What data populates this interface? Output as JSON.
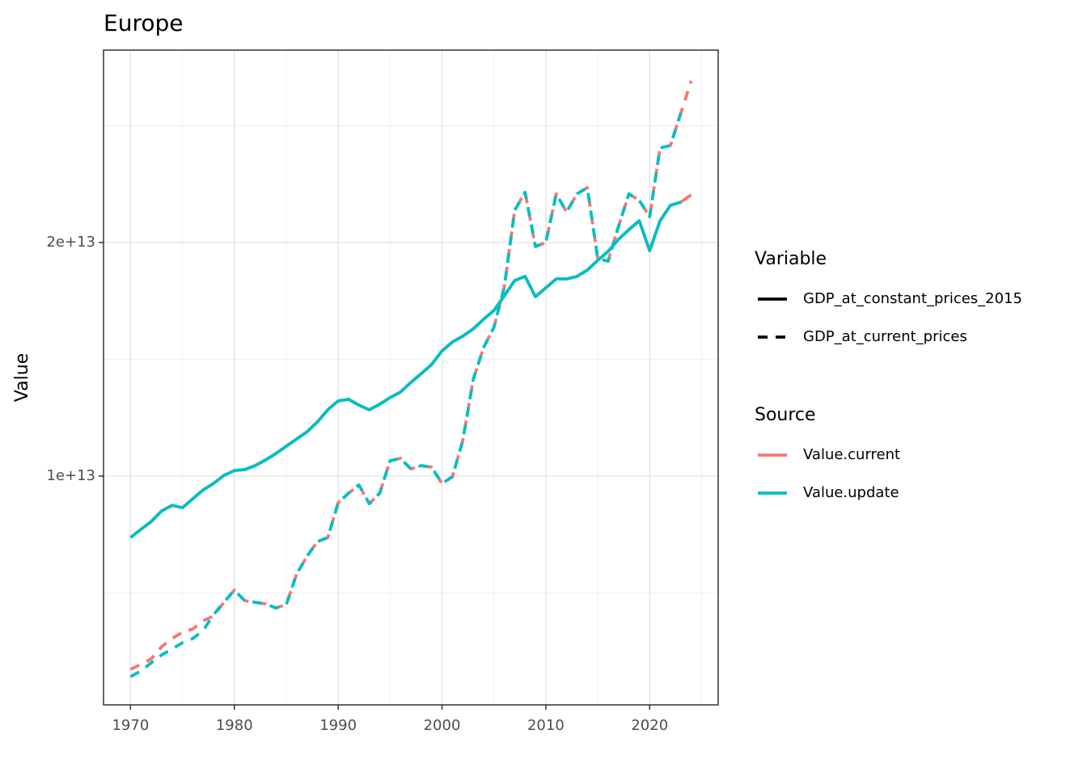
{
  "chart_data": {
    "type": "line",
    "title": "Europe",
    "y_label": "Value",
    "x": [
      1970,
      1971,
      1972,
      1973,
      1974,
      1975,
      1976,
      1977,
      1978,
      1979,
      1980,
      1981,
      1982,
      1983,
      1984,
      1985,
      1986,
      1987,
      1988,
      1989,
      1990,
      1991,
      1992,
      1993,
      1994,
      1995,
      1996,
      1997,
      1998,
      1999,
      2000,
      2001,
      2002,
      2003,
      2004,
      2005,
      2006,
      2007,
      2008,
      2009,
      2010,
      2011,
      2012,
      2013,
      2014,
      2015,
      2016,
      2017,
      2018,
      2019,
      2020,
      2021,
      2022,
      2023,
      2024
    ],
    "xlim": [
      1967.4,
      2026.6
    ],
    "xticks": [
      1970,
      1980,
      1990,
      2000,
      2010,
      2020
    ],
    "minor_xticks": [
      1975,
      1985,
      1995,
      2005,
      2015,
      2025
    ],
    "ylim": [
      210000000000.0,
      28235000000000.0
    ],
    "yticks": [
      {
        "value": 10000000000000.0,
        "label": "1e+13"
      },
      {
        "value": 20000000000000.0,
        "label": "2e+13"
      }
    ],
    "minor_yticks": [
      5000000000000.0,
      15000000000000.0,
      25000000000000.0
    ],
    "grid": true,
    "series": [
      {
        "variable": "GDP_at_constant_prices_2015",
        "source": "Value.current",
        "linetype": "solid",
        "color": "#F8766D",
        "values": [
          7370000000000.0,
          7720000000000.0,
          8060000000000.0,
          8510000000000.0,
          8750000000000.0,
          8650000000000.0,
          9030000000000.0,
          9410000000000.0,
          9690000000000.0,
          10030000000000.0,
          10240000000000.0,
          10280000000000.0,
          10450000000000.0,
          10690000000000.0,
          10970000000000.0,
          11280000000000.0,
          11590000000000.0,
          11900000000000.0,
          12320000000000.0,
          12840000000000.0,
          13220000000000.0,
          13290000000000.0,
          13040000000000.0,
          12840000000000.0,
          13080000000000.0,
          13360000000000.0,
          13600000000000.0,
          14010000000000.0,
          14390000000000.0,
          14780000000000.0,
          15360000000000.0,
          15740000000000.0,
          15990000000000.0,
          16300000000000.0,
          16710000000000.0,
          17090000000000.0,
          17720000000000.0,
          18370000000000.0,
          18550000000000.0,
          17680000000000.0,
          18060000000000.0,
          18440000000000.0,
          18440000000000.0,
          18550000000000.0,
          18820000000000.0,
          19240000000000.0,
          19620000000000.0,
          20140000000000.0,
          20550000000000.0,
          20930000000000.0,
          19650000000000.0,
          20930000000000.0,
          21590000000000.0,
          21730000000000.0,
          22040000000000.0
        ]
      },
      {
        "variable": "GDP_at_current_prices",
        "source": "Value.current",
        "linetype": "dashed",
        "color": "#F8766D",
        "values": [
          1730000000000.0,
          1940000000000.0,
          2180000000000.0,
          2700000000000.0,
          3050000000000.0,
          3320000000000.0,
          3460000000000.0,
          3810000000000.0,
          4010000000000.0,
          4600000000000.0,
          5120000000000.0,
          4670000000000.0,
          4600000000000.0,
          4530000000000.0,
          4360000000000.0,
          4500000000000.0,
          5810000000000.0,
          6570000000000.0,
          7200000000000.0,
          7370000000000.0,
          8860000000000.0,
          9270000000000.0,
          9620000000000.0,
          8820000000000.0,
          9270000000000.0,
          10660000000000.0,
          10760000000000.0,
          10310000000000.0,
          10450000000000.0,
          10380000000000.0,
          9690000000000.0,
          9970000000000.0,
          11520000000000.0,
          14120000000000.0,
          15500000000000.0,
          16370000000000.0,
          18100000000000.0,
          21380000000000.0,
          22150000000000.0,
          19830000000000.0,
          20000000000000.0,
          22080000000000.0,
          21310000000000.0,
          22080000000000.0,
          22350000000000.0,
          19310000000000.0,
          19200000000000.0,
          20690000000000.0,
          22080000000000.0,
          21800000000000.0,
          21110000000000.0,
          24050000000000.0,
          24150000000000.0,
          25540000000000.0,
          26920000000000.0
        ]
      },
      {
        "variable": "GDP_at_constant_prices_2015",
        "source": "Value.update",
        "linetype": "solid",
        "color": "#00BFC4",
        "values": [
          7370000000000.0,
          7720000000000.0,
          8060000000000.0,
          8510000000000.0,
          8750000000000.0,
          8650000000000.0,
          9030000000000.0,
          9410000000000.0,
          9690000000000.0,
          10030000000000.0,
          10240000000000.0,
          10280000000000.0,
          10450000000000.0,
          10690000000000.0,
          10970000000000.0,
          11280000000000.0,
          11590000000000.0,
          11900000000000.0,
          12320000000000.0,
          12840000000000.0,
          13220000000000.0,
          13290000000000.0,
          13040000000000.0,
          12840000000000.0,
          13080000000000.0,
          13360000000000.0,
          13600000000000.0,
          14010000000000.0,
          14390000000000.0,
          14780000000000.0,
          15360000000000.0,
          15740000000000.0,
          15990000000000.0,
          16300000000000.0,
          16710000000000.0,
          17090000000000.0,
          17720000000000.0,
          18370000000000.0,
          18550000000000.0,
          17680000000000.0,
          18060000000000.0,
          18440000000000.0,
          18440000000000.0,
          18550000000000.0,
          18820000000000.0,
          19240000000000.0,
          19620000000000.0,
          20140000000000.0,
          20550000000000.0,
          20930000000000.0,
          19650000000000.0,
          20930000000000.0,
          21590000000000.0,
          21730000000000.0,
          null
        ]
      },
      {
        "variable": "GDP_at_current_prices",
        "source": "Value.update",
        "linetype": "dashed",
        "color": "#00BFC4",
        "values": [
          1420000000000.0,
          1660000000000.0,
          2010000000000.0,
          2350000000000.0,
          2600000000000.0,
          2870000000000.0,
          3050000000000.0,
          3390000000000.0,
          4080000000000.0,
          4600000000000.0,
          5120000000000.0,
          4670000000000.0,
          4600000000000.0,
          4530000000000.0,
          4360000000000.0,
          4500000000000.0,
          5810000000000.0,
          6570000000000.0,
          7200000000000.0,
          7370000000000.0,
          8860000000000.0,
          9270000000000.0,
          9620000000000.0,
          8820000000000.0,
          9270000000000.0,
          10660000000000.0,
          10760000000000.0,
          10310000000000.0,
          10450000000000.0,
          10380000000000.0,
          9690000000000.0,
          9970000000000.0,
          11520000000000.0,
          14120000000000.0,
          15500000000000.0,
          16370000000000.0,
          18100000000000.0,
          21380000000000.0,
          22150000000000.0,
          19830000000000.0,
          20000000000000.0,
          22080000000000.0,
          21310000000000.0,
          22080000000000.0,
          22350000000000.0,
          19310000000000.0,
          19200000000000.0,
          20690000000000.0,
          22080000000000.0,
          21800000000000.0,
          21110000000000.0,
          24050000000000.0,
          24150000000000.0,
          25540000000000.0,
          null
        ]
      }
    ],
    "legends": [
      {
        "title": "Variable",
        "items": [
          {
            "name": "GDP_at_constant_prices_2015",
            "linetype": "solid",
            "color": "#000000"
          },
          {
            "name": "GDP_at_current_prices",
            "linetype": "dashed",
            "color": "#000000"
          }
        ]
      },
      {
        "title": "Source",
        "items": [
          {
            "name": "Value.current",
            "linetype": "solid",
            "color": "#F8766D"
          },
          {
            "name": "Value.update",
            "linetype": "solid",
            "color": "#00BFC4"
          }
        ]
      }
    ]
  }
}
